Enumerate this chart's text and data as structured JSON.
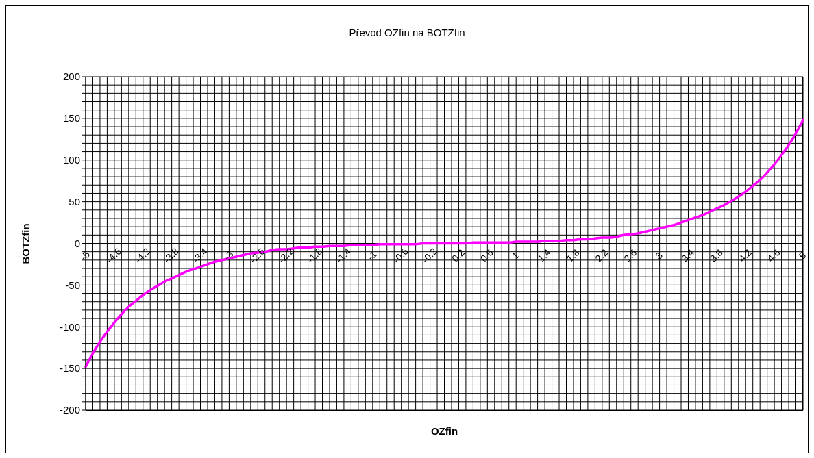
{
  "chart_data": {
    "type": "line",
    "title": "Převod OZfin na BOTZfin",
    "xlabel": "OZfin",
    "ylabel": "BOTZfin",
    "categories": [
      "-5",
      null,
      null,
      null,
      "-4.6",
      null,
      null,
      null,
      "-4.2",
      null,
      null,
      null,
      "-3.8",
      null,
      null,
      null,
      "-3.4",
      null,
      null,
      null,
      "-3",
      null,
      null,
      null,
      "-2.6",
      null,
      null,
      null,
      "-2.2",
      null,
      null,
      null,
      "-1.8",
      null,
      null,
      null,
      "-1.4",
      null,
      null,
      null,
      "-1",
      null,
      null,
      null,
      "-0.6",
      null,
      null,
      null,
      "-0.2",
      null,
      null,
      null,
      "0.2",
      null,
      null,
      null,
      "0.6",
      null,
      null,
      null,
      "1",
      null,
      null,
      null,
      "1.4",
      null,
      null,
      null,
      "1.8",
      null,
      null,
      null,
      "2.2",
      null,
      null,
      null,
      "2.6",
      null,
      null,
      null,
      "3",
      null,
      null,
      null,
      "3.4",
      null,
      null,
      null,
      "3.8",
      null,
      null,
      null,
      "4.2",
      null,
      null,
      null,
      "4.6",
      null,
      null,
      null,
      "5"
    ],
    "series": [
      {
        "color": "#ff00ff",
        "values": [
          -148,
          -132,
          -118,
          -106,
          -95,
          -85,
          -76,
          -69,
          -62,
          -56,
          -51,
          -46,
          -42,
          -38,
          -34,
          -31,
          -28,
          -25,
          -22,
          -20,
          -18,
          -16,
          -14,
          -12,
          -11,
          -10,
          -8,
          -7,
          -7,
          -6,
          -5,
          -5,
          -4,
          -4,
          -3,
          -3,
          -3,
          -2,
          -2,
          -2,
          -2,
          -1,
          -1,
          -1,
          -1,
          -1,
          -1,
          0,
          0,
          0,
          0,
          0,
          0,
          0,
          1,
          1,
          1,
          1,
          1,
          1,
          2,
          2,
          2,
          2,
          3,
          3,
          3,
          4,
          4,
          5,
          5,
          6,
          7,
          7,
          8,
          10,
          11,
          12,
          14,
          16,
          18,
          20,
          22,
          25,
          28,
          31,
          34,
          38,
          42,
          46,
          51,
          56,
          62,
          69,
          76,
          85,
          95,
          106,
          118,
          132,
          148
        ]
      }
    ],
    "ylim": [
      -200,
      200
    ],
    "yticks": [
      -200,
      {
        "value": -190,
        "label": null
      },
      {
        "value": -180,
        "label": null
      },
      {
        "value": -170,
        "label": null
      },
      {
        "value": -160,
        "label": null
      },
      -150,
      {
        "value": -140,
        "label": null
      },
      {
        "value": -130,
        "label": null
      },
      {
        "value": -120,
        "label": null
      },
      {
        "value": -110,
        "label": null
      },
      -100,
      {
        "value": -90,
        "label": null
      },
      {
        "value": -80,
        "label": null
      },
      {
        "value": -70,
        "label": null
      },
      {
        "value": -60,
        "label": null
      },
      -50,
      {
        "value": -40,
        "label": null
      },
      {
        "value": -30,
        "label": null
      },
      {
        "value": -20,
        "label": null
      },
      {
        "value": -10,
        "label": null
      },
      0,
      {
        "value": 10,
        "label": null
      },
      {
        "value": 20,
        "label": null
      },
      {
        "value": 30,
        "label": null
      },
      {
        "value": 40,
        "label": null
      },
      50,
      {
        "value": 60,
        "label": null
      },
      {
        "value": 70,
        "label": null
      },
      {
        "value": 80,
        "label": null
      },
      {
        "value": 90,
        "label": null
      },
      100,
      {
        "value": 110,
        "label": null
      },
      {
        "value": 120,
        "label": null
      },
      {
        "value": 130,
        "label": null
      },
      {
        "value": 140,
        "label": null
      },
      150,
      {
        "value": 160,
        "label": null
      },
      {
        "value": 170,
        "label": null
      },
      {
        "value": 180,
        "label": null
      },
      {
        "value": 190,
        "label": null
      },
      200
    ],
    "grid": true,
    "legend": false,
    "marker": "none",
    "line_style": "solid"
  }
}
